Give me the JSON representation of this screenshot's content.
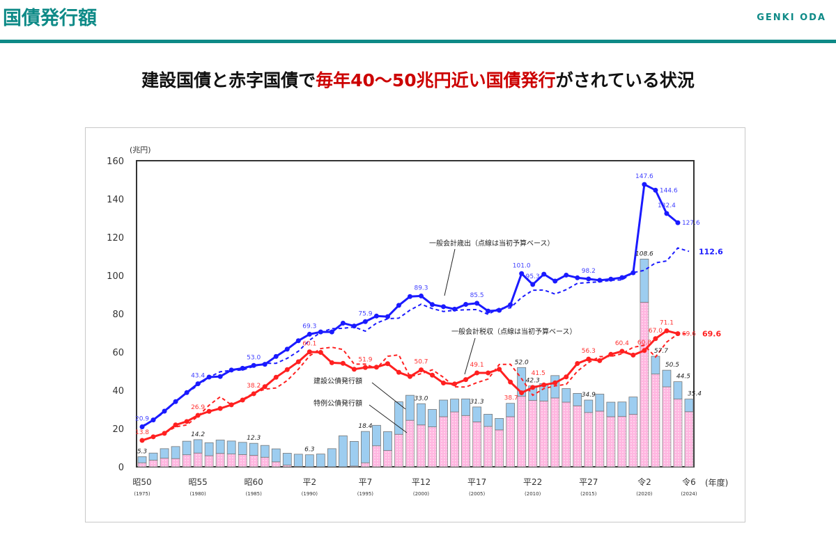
{
  "header": {
    "title": "国債発行額",
    "author": "GENKI ODA"
  },
  "headline": {
    "part1": "建設国債と赤字国債で",
    "highlight": "毎年40～50兆円近い国債発行",
    "part2": "がされている状況"
  },
  "colors": {
    "brand": "#0e8a87",
    "highlight": "#cc0000",
    "expenditure": "#1a1aff",
    "tax": "#ff2020",
    "construction_bond": "#9dcdf0",
    "deficit_bond": "#ffb6e0"
  },
  "chart_data": {
    "type": "bar+line",
    "yunit": "(兆円)",
    "xunit": "(年度)",
    "ylim": [
      0,
      160
    ],
    "yticks": [
      0,
      20,
      40,
      60,
      80,
      100,
      120,
      140,
      160
    ],
    "years": [
      1975,
      1976,
      1977,
      1978,
      1979,
      1980,
      1981,
      1982,
      1983,
      1984,
      1985,
      1986,
      1987,
      1988,
      1989,
      1990,
      1991,
      1992,
      1993,
      1994,
      1995,
      1996,
      1997,
      1998,
      1999,
      2000,
      2001,
      2002,
      2003,
      2004,
      2005,
      2006,
      2007,
      2008,
      2009,
      2010,
      2011,
      2012,
      2013,
      2014,
      2015,
      2016,
      2017,
      2018,
      2019,
      2020,
      2021,
      2022,
      2023,
      2024
    ],
    "xticks": [
      {
        "year": 1975,
        "era": "昭50",
        "label": "(1975)"
      },
      {
        "year": 1980,
        "era": "昭55",
        "label": "(1980)"
      },
      {
        "year": 1985,
        "era": "昭60",
        "label": "(1985)"
      },
      {
        "year": 1990,
        "era": "平2",
        "label": "(1990)"
      },
      {
        "year": 1995,
        "era": "平7",
        "label": "(1995)"
      },
      {
        "year": 2000,
        "era": "平12",
        "label": "(2000)"
      },
      {
        "year": 2005,
        "era": "平17",
        "label": "(2005)"
      },
      {
        "year": 2010,
        "era": "平22",
        "label": "(2010)"
      },
      {
        "year": 2015,
        "era": "平27",
        "label": "(2015)"
      },
      {
        "year": 2020,
        "era": "令2",
        "label": "(2020)"
      },
      {
        "year": 2024,
        "era": "令6",
        "label": "(2024)"
      }
    ],
    "series": [
      {
        "name": "建設公債発行額",
        "kind": "bar",
        "values": [
          3.2,
          3.7,
          5.0,
          6.3,
          7.1,
          7.0,
          6.8,
          7.0,
          6.8,
          6.4,
          6.3,
          6.2,
          6.8,
          6.2,
          6.4,
          6.3,
          6.7,
          9.5,
          16.2,
          12.9,
          16.4,
          10.7,
          9.9,
          17.0,
          13.1,
          11.1,
          9.1,
          8.7,
          6.7,
          8.7,
          7.8,
          6.4,
          6.0,
          7.0,
          15.0,
          7.6,
          9.1,
          11.7,
          7.1,
          6.5,
          6.5,
          8.9,
          7.6,
          7.6,
          9.1,
          22.6,
          9.3,
          8.7,
          9.1,
          6.6
        ]
      },
      {
        "name": "特例公債発行額",
        "kind": "bar",
        "values": [
          2.1,
          3.5,
          4.5,
          4.3,
          6.3,
          7.2,
          5.8,
          7.0,
          6.7,
          6.4,
          6.0,
          5.0,
          2.6,
          0.9,
          0.2,
          0.0,
          0.0,
          0.0,
          0.0,
          0.4,
          2.1,
          11.0,
          8.5,
          17.0,
          24.3,
          21.9,
          20.9,
          26.2,
          28.7,
          26.8,
          23.5,
          21.1,
          19.3,
          26.2,
          36.9,
          34.7,
          34.4,
          36.0,
          33.8,
          31.9,
          28.4,
          29.1,
          26.2,
          26.3,
          27.4,
          86.0,
          48.5,
          41.8,
          35.4,
          28.8
        ]
      },
      {
        "name": "一般会計歳出（点線は当初予算ベース）",
        "kind": "line",
        "values": [
          20.9,
          24.5,
          29.1,
          34.1,
          38.8,
          43.4,
          46.9,
          47.2,
          50.6,
          51.5,
          53.0,
          53.6,
          57.7,
          61.5,
          65.9,
          69.3,
          70.5,
          70.5,
          75.1,
          73.6,
          75.9,
          78.8,
          78.5,
          84.4,
          89.0,
          89.3,
          84.8,
          83.7,
          82.4,
          84.9,
          85.5,
          81.4,
          81.8,
          84.7,
          101.0,
          95.3,
          100.7,
          97.1,
          100.2,
          98.8,
          98.2,
          97.5,
          98.1,
          98.9,
          101.4,
          147.6,
          144.6,
          132.4,
          127.6,
          null
        ],
        "budget": [
          21.3,
          24.5,
          28.5,
          34.3,
          38.6,
          42.6,
          46.8,
          49.7,
          50.4,
          50.6,
          52.5,
          54.1,
          54.1,
          56.7,
          60.4,
          66.2,
          70.3,
          72.2,
          72.4,
          73.1,
          70.9,
          75.1,
          77.4,
          77.7,
          81.9,
          85.0,
          82.7,
          81.2,
          81.8,
          82.1,
          82.2,
          79.7,
          82.9,
          83.1,
          88.5,
          92.3,
          92.4,
          90.3,
          92.6,
          95.9,
          96.3,
          96.7,
          97.5,
          97.7,
          101.5,
          102.7,
          106.6,
          107.6,
          114.4,
          112.6
        ]
      },
      {
        "name": "一般会計税収（点線は当初予算ベース）",
        "kind": "line",
        "values": [
          13.8,
          15.7,
          17.5,
          21.9,
          23.7,
          26.9,
          29.0,
          30.5,
          32.4,
          34.9,
          38.2,
          41.9,
          46.8,
          50.8,
          54.9,
          60.1,
          59.8,
          54.4,
          54.1,
          51.0,
          51.9,
          52.1,
          53.9,
          49.4,
          47.2,
          50.7,
          47.9,
          43.8,
          43.3,
          45.6,
          49.1,
          49.1,
          51.0,
          44.3,
          38.7,
          41.5,
          42.8,
          43.9,
          47.0,
          54.0,
          56.3,
          55.5,
          58.8,
          60.4,
          58.4,
          60.8,
          67.0,
          71.1,
          69.6,
          null
        ],
        "budget": [
          13.8,
          15.7,
          17.5,
          20.9,
          21.9,
          26.4,
          32.2,
          36.6,
          32.3,
          35.3,
          38.5,
          40.6,
          41.2,
          45.1,
          51.0,
          58.0,
          61.8,
          62.5,
          61.3,
          53.7,
          53.7,
          51.3,
          57.8,
          58.5,
          47.1,
          48.7,
          50.7,
          46.8,
          41.8,
          41.7,
          44.0,
          45.9,
          53.5,
          53.6,
          46.1,
          37.4,
          40.9,
          42.3,
          43.1,
          50.0,
          54.5,
          57.6,
          57.7,
          59.1,
          62.5,
          63.5,
          57.4,
          65.2,
          69.4,
          69.6
        ]
      }
    ],
    "labels": {
      "expenditure": [
        {
          "year": 1975,
          "text": "20.9"
        },
        {
          "year": 1980,
          "text": "43.4"
        },
        {
          "year": 1985,
          "text": "53.0"
        },
        {
          "year": 1990,
          "text": "69.3"
        },
        {
          "year": 1995,
          "text": "75.9"
        },
        {
          "year": 2000,
          "text": "89.3"
        },
        {
          "year": 2005,
          "text": "85.5"
        },
        {
          "year": 2009,
          "text": "101.0"
        },
        {
          "year": 2010,
          "text": "95.3"
        },
        {
          "year": 2015,
          "text": "98.2"
        },
        {
          "year": 2020,
          "text": "147.6"
        },
        {
          "year": 2021,
          "text": "144.6"
        },
        {
          "year": 2022,
          "text": "132.4"
        },
        {
          "year": 2023,
          "text": "127.6"
        }
      ],
      "expenditure_budget_2024": "112.6",
      "tax": [
        {
          "year": 1975,
          "text": "13.8"
        },
        {
          "year": 1980,
          "text": "26.9"
        },
        {
          "year": 1985,
          "text": "38.2"
        },
        {
          "year": 1990,
          "text": "60.1"
        },
        {
          "year": 1995,
          "text": "51.9"
        },
        {
          "year": 2000,
          "text": "50.7"
        },
        {
          "year": 2005,
          "text": "49.1"
        },
        {
          "year": 2009,
          "text": "38.7"
        },
        {
          "year": 2010,
          "text": "41.5"
        },
        {
          "year": 2015,
          "text": "56.3"
        },
        {
          "year": 2018,
          "text": "60.4"
        },
        {
          "year": 2020,
          "text": "60.8"
        },
        {
          "year": 2021,
          "text": "67.0"
        },
        {
          "year": 2022,
          "text": "71.1"
        },
        {
          "year": 2023,
          "text": "69.6"
        }
      ],
      "tax_budget_2024": "69.6",
      "bond_totals": [
        {
          "year": 1975,
          "text": "5.3"
        },
        {
          "year": 1980,
          "text": "14.2"
        },
        {
          "year": 1985,
          "text": "12.3"
        },
        {
          "year": 1990,
          "text": "6.3"
        },
        {
          "year": 1995,
          "text": "18.4"
        },
        {
          "year": 2000,
          "text": "33.0"
        },
        {
          "year": 2005,
          "text": "31.3"
        },
        {
          "year": 2009,
          "text": "52.0"
        },
        {
          "year": 2010,
          "text": "42.3"
        },
        {
          "year": 2015,
          "text": "34.9"
        },
        {
          "year": 2020,
          "text": "108.6"
        },
        {
          "year": 2021,
          "text": "57.7"
        },
        {
          "year": 2022,
          "text": "50.5"
        },
        {
          "year": 2023,
          "text": "44.5"
        },
        {
          "year": 2024,
          "text": "35.4"
        }
      ]
    },
    "annotations": {
      "expenditure": "一般会計歳出（点線は当初予算ベース）",
      "tax": "一般会計税収（点線は当初予算ベース）",
      "construction": "建設公債発行額",
      "deficit": "特例公債発行額"
    }
  }
}
